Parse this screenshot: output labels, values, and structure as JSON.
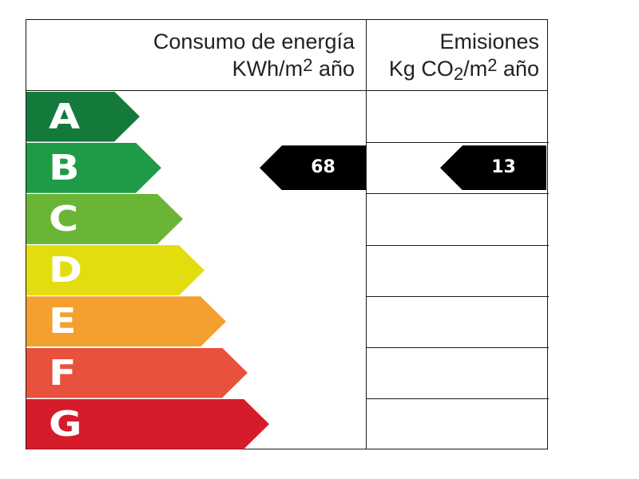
{
  "header": {
    "energy_line1": "Consumo de energía",
    "energy_line2_prefix": "KWh/m",
    "energy_line2_sup": "2",
    "energy_line2_suffix": " año",
    "emis_line1": "Emisiones",
    "emis_line2_prefix": "Kg CO",
    "emis_line2_sub": "2",
    "emis_line2_mid": "/m",
    "emis_line2_sup": "2",
    "emis_line2_suffix": " año"
  },
  "bands": [
    {
      "letter": "A",
      "color": "#137a3c"
    },
    {
      "letter": "B",
      "color": "#1f9a46"
    },
    {
      "letter": "C",
      "color": "#6ab536"
    },
    {
      "letter": "D",
      "color": "#e3dd10"
    },
    {
      "letter": "E",
      "color": "#f3a030"
    },
    {
      "letter": "F",
      "color": "#e8513c"
    },
    {
      "letter": "G",
      "color": "#d61b2b"
    }
  ],
  "ratings": {
    "energy": {
      "value": "68",
      "band": "B"
    },
    "emissions": {
      "value": "13",
      "band": "B"
    }
  },
  "chart_data": {
    "type": "table",
    "categories": [
      "A",
      "B",
      "C",
      "D",
      "E",
      "F",
      "G"
    ],
    "series": [
      {
        "name": "Consumo de energía",
        "value": 68,
        "band": "B"
      },
      {
        "name": "Emisiones",
        "value": 13,
        "band": "B"
      }
    ]
  }
}
